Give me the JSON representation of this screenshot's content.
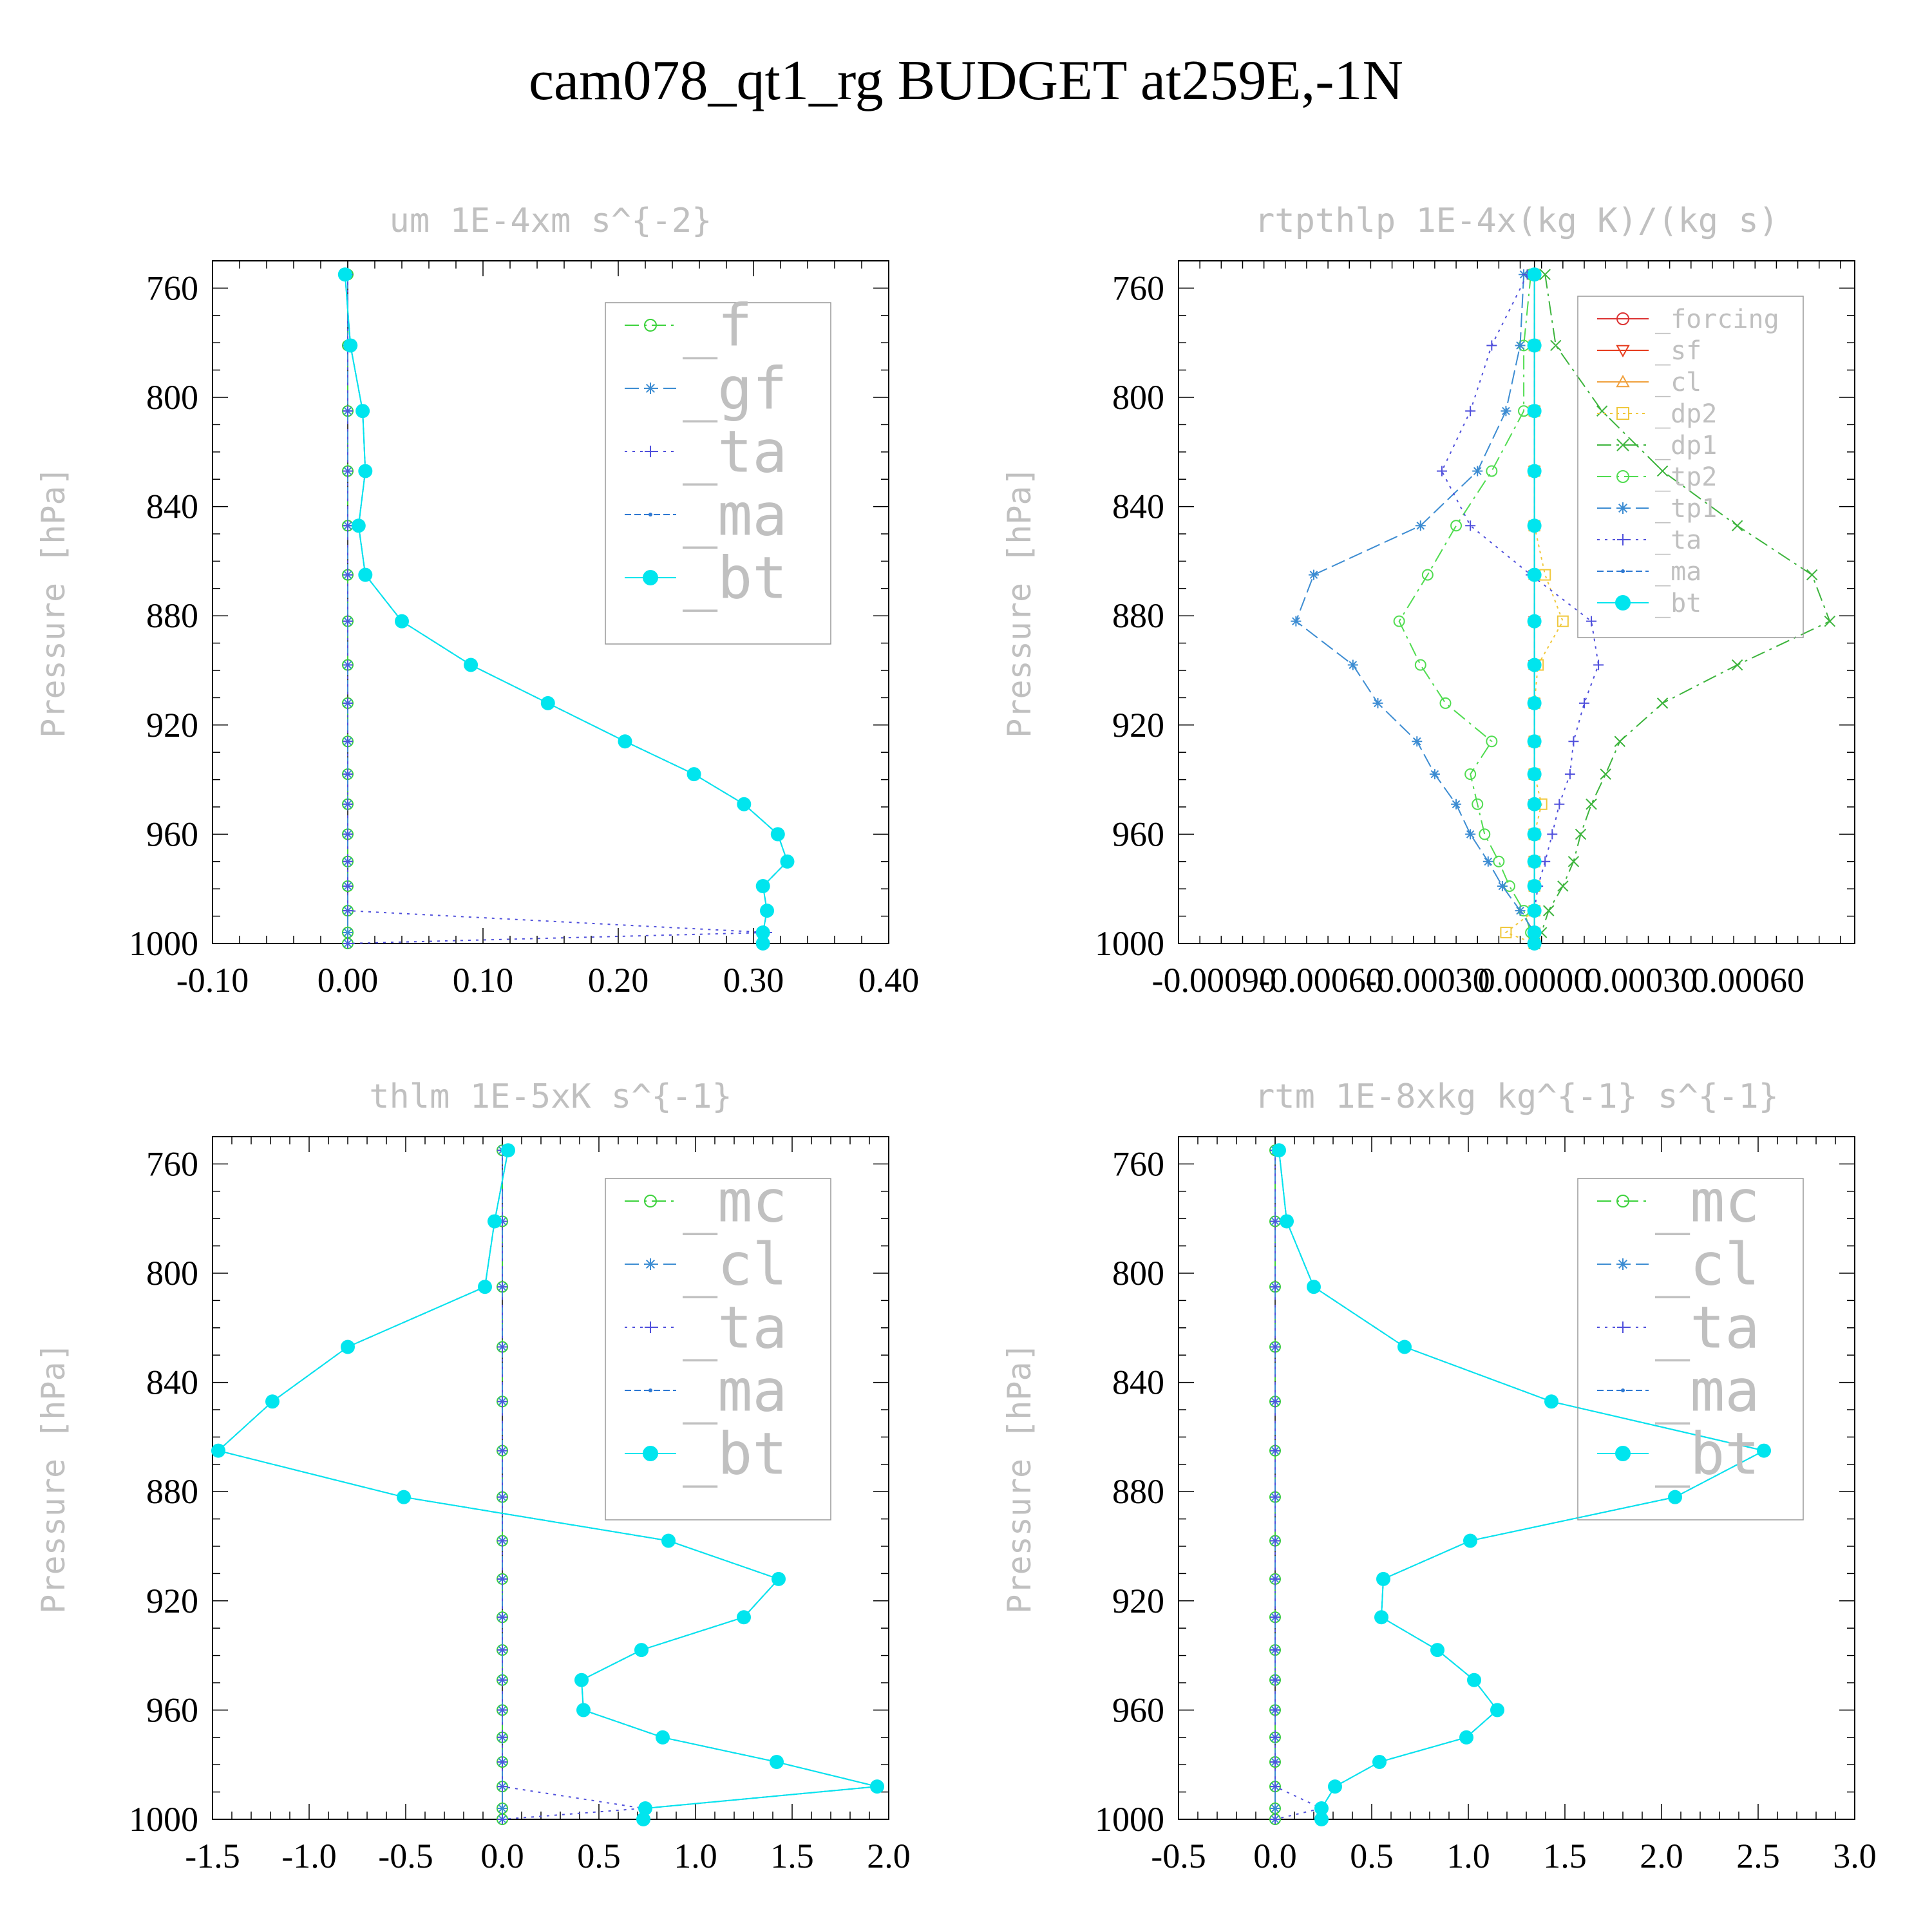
{
  "figure_title": "cam078_qt1_rg  BUDGET at259E,-1N",
  "chart_data": [
    {
      "type": "line",
      "title": "um  1E-4xm s^{-2}",
      "ylabel": "Pressure [hPa]",
      "xlim": [
        -0.1,
        0.4
      ],
      "ylim": [
        1000,
        750
      ],
      "x_tick_labels": [
        "-0.10",
        "0.00",
        "0.10",
        "0.20",
        "0.30",
        "0.40"
      ],
      "y_tick_labels": [
        "760",
        "800",
        "840",
        "880",
        "920",
        "960",
        "1000"
      ],
      "pressure": [
        755,
        781,
        805,
        827,
        847,
        865,
        882,
        898,
        912,
        926,
        938,
        949,
        960,
        970,
        979,
        988,
        996,
        1000
      ],
      "legend_font": 90,
      "series": [
        {
          "name": "_f",
          "color": "#3cd23c",
          "marker": "circle",
          "dash": "22,8,4,8",
          "values": [
            0,
            0,
            0,
            0,
            0,
            0,
            0,
            0,
            0,
            0,
            0,
            0,
            0,
            0,
            0,
            0,
            0,
            0
          ]
        },
        {
          "name": "_gf",
          "color": "#3c8cd2",
          "marker": "star",
          "dash": "22,8",
          "values": [
            0,
            0,
            0,
            0,
            0,
            0,
            0,
            0,
            0,
            0,
            0,
            0,
            0,
            0,
            0,
            0,
            0,
            0
          ]
        },
        {
          "name": "_ta",
          "color": "#5050dc",
          "marker": "plus",
          "dash": "4,8",
          "values": [
            0,
            0,
            0,
            0,
            0,
            0,
            0,
            0,
            0,
            0,
            0,
            0,
            0,
            0,
            0,
            0,
            0.31,
            0
          ]
        },
        {
          "name": "_ma",
          "color": "#2d78d2",
          "marker": "dot",
          "dash": "10,5",
          "values": [
            -0.002,
            0.002,
            0.011,
            0.013,
            0.008,
            0.013,
            0.04,
            0.091,
            0.148,
            0.205,
            0.256,
            0.293,
            0.318,
            0.325,
            0.307,
            0.31,
            0.307,
            0.307
          ]
        },
        {
          "name": "_bt",
          "color": "#00e5ee",
          "marker": "fcircle",
          "dash": "",
          "values": [
            -0.002,
            0.002,
            0.011,
            0.013,
            0.008,
            0.013,
            0.04,
            0.091,
            0.148,
            0.205,
            0.256,
            0.293,
            0.318,
            0.325,
            0.307,
            0.31,
            0.307,
            0.307
          ]
        }
      ]
    },
    {
      "type": "line",
      "title": "rtpthlp  1E-4x(kg K)/(kg s)",
      "ylabel": "Pressure [hPa]",
      "xlim": [
        -0.001,
        0.0009
      ],
      "ylim": [
        1000,
        750
      ],
      "x_tick_labels": [
        "-0.00090",
        "-0.00060",
        "-0.00030",
        "0.00000",
        "0.00030",
        "0.00060"
      ],
      "y_tick_labels": [
        "760",
        "800",
        "840",
        "880",
        "920",
        "960",
        "1000"
      ],
      "pressure": [
        755,
        781,
        805,
        827,
        847,
        865,
        882,
        898,
        912,
        926,
        938,
        949,
        960,
        970,
        979,
        988,
        996,
        1000
      ],
      "legend_font": 40,
      "series": [
        {
          "name": "_forcing",
          "color": "#dc3232",
          "marker": "circle",
          "dash": "",
          "values": [
            0,
            0,
            0,
            0,
            0,
            0,
            0,
            0,
            0,
            0,
            0,
            0,
            0,
            0,
            0,
            0,
            0,
            0
          ]
        },
        {
          "name": "_sf",
          "color": "#e63c1e",
          "marker": "triangle-down",
          "dash": "",
          "values": [
            0,
            0,
            0,
            0,
            0,
            0,
            0,
            0,
            0,
            0,
            0,
            0,
            0,
            0,
            0,
            0,
            0,
            0
          ]
        },
        {
          "name": "_cl",
          "color": "#f0a03c",
          "marker": "triangle-up",
          "dash": "",
          "values": [
            0,
            0,
            0,
            0,
            0,
            0,
            0,
            0,
            0,
            0,
            0,
            0,
            0,
            0,
            0,
            0,
            0,
            0
          ]
        },
        {
          "name": "_dp2",
          "color": "#f0c83c",
          "marker": "square",
          "dash": "4,6",
          "values": [
            0,
            0,
            0,
            0,
            0,
            3e-05,
            8e-05,
            1e-05,
            0,
            0,
            0,
            2e-05,
            0,
            0,
            0,
            0,
            -8e-05,
            0
          ]
        },
        {
          "name": "_dp1",
          "color": "#3cb43c",
          "marker": "cross",
          "dash": "22,8,4,8",
          "values": [
            3e-05,
            6e-05,
            0.00019,
            0.00036,
            0.00057,
            0.00078,
            0.00083,
            0.00057,
            0.00036,
            0.00024,
            0.0002,
            0.00016,
            0.00013,
            0.00011,
            8e-05,
            4e-05,
            2e-05,
            0
          ]
        },
        {
          "name": "_tp2",
          "color": "#50dc50",
          "marker": "circle",
          "dash": "22,8,4,8",
          "values": [
            -1e-05,
            -3e-05,
            -3e-05,
            -0.00012,
            -0.00022,
            -0.0003,
            -0.00038,
            -0.00032,
            -0.00025,
            -0.00012,
            -0.00018,
            -0.00016,
            -0.00014,
            -0.0001,
            -7e-05,
            -3e-05,
            -1e-05,
            0
          ]
        },
        {
          "name": "_tp1",
          "color": "#3c8cd2",
          "marker": "star",
          "dash": "22,8",
          "values": [
            -3e-05,
            -4e-05,
            -8e-05,
            -0.00016,
            -0.00032,
            -0.00062,
            -0.00067,
            -0.00051,
            -0.00044,
            -0.00033,
            -0.00028,
            -0.00022,
            -0.00018,
            -0.00013,
            -9e-05,
            -4e-05,
            0,
            0
          ]
        },
        {
          "name": "_ta",
          "color": "#5050dc",
          "marker": "plus",
          "dash": "4,8",
          "values": [
            -2e-05,
            -0.00012,
            -0.00018,
            -0.00026,
            -0.00018,
            -1e-05,
            0.00016,
            0.00018,
            0.00014,
            0.00011,
            0.0001,
            7e-05,
            5e-05,
            3e-05,
            1e-05,
            0,
            0,
            0
          ]
        },
        {
          "name": "_ma",
          "color": "#2d78d2",
          "marker": "dot",
          "dash": "10,5",
          "values": [
            0,
            0,
            0,
            0,
            0,
            0,
            0,
            0,
            0,
            0,
            0,
            0,
            0,
            0,
            0,
            0,
            0,
            0
          ]
        },
        {
          "name": "_bt",
          "color": "#00e5ee",
          "marker": "fcircle",
          "dash": "",
          "values": [
            0,
            0,
            0,
            0,
            0,
            0,
            0,
            0,
            0,
            0,
            0,
            0,
            0,
            0,
            0,
            0,
            0,
            0
          ]
        }
      ]
    },
    {
      "type": "line",
      "title": "thlm  1E-5xK s^{-1}",
      "ylabel": "Pressure [hPa]",
      "xlim": [
        -1.5,
        2.0
      ],
      "ylim": [
        1000,
        750
      ],
      "x_tick_labels": [
        "-1.5",
        "-1.0",
        "-0.5",
        "0.0",
        "0.5",
        "1.0",
        "1.5",
        "2.0"
      ],
      "y_tick_labels": [
        "760",
        "800",
        "840",
        "880",
        "920",
        "960",
        "1000"
      ],
      "pressure": [
        755,
        781,
        805,
        827,
        847,
        865,
        882,
        898,
        912,
        926,
        938,
        949,
        960,
        970,
        979,
        988,
        996,
        1000
      ],
      "legend_font": 90,
      "series": [
        {
          "name": "_mc",
          "color": "#3cd23c",
          "marker": "circle",
          "dash": "22,8,4,8",
          "values": [
            0,
            0,
            0,
            0,
            0,
            0,
            0,
            0,
            0,
            0,
            0,
            0,
            0,
            0,
            0,
            0,
            0,
            0
          ]
        },
        {
          "name": "_cl",
          "color": "#3c8cd2",
          "marker": "star",
          "dash": "22,8",
          "values": [
            0,
            0,
            0,
            0,
            0,
            0,
            0,
            0,
            0,
            0,
            0,
            0,
            0,
            0,
            0,
            0,
            0,
            0
          ]
        },
        {
          "name": "_ta",
          "color": "#5050dc",
          "marker": "plus",
          "dash": "4,8",
          "values": [
            0,
            0,
            0,
            0,
            0,
            0,
            0,
            0,
            0,
            0,
            0,
            0,
            0,
            0,
            0,
            0,
            0.73,
            0
          ]
        },
        {
          "name": "_ma",
          "color": "#2d78d2",
          "marker": "dot",
          "dash": "10,5",
          "values": [
            0.03,
            -0.04,
            -0.09,
            -0.8,
            -1.19,
            -1.47,
            -0.51,
            0.86,
            1.43,
            1.25,
            0.72,
            0.41,
            0.42,
            0.83,
            1.42,
            1.94,
            0.74,
            0.73
          ]
        },
        {
          "name": "_bt",
          "color": "#00e5ee",
          "marker": "fcircle",
          "dash": "",
          "values": [
            0.03,
            -0.04,
            -0.09,
            -0.8,
            -1.19,
            -1.47,
            -0.51,
            0.86,
            1.43,
            1.25,
            0.72,
            0.41,
            0.42,
            0.83,
            1.42,
            1.94,
            0.74,
            0.73
          ]
        }
      ]
    },
    {
      "type": "line",
      "title": "rtm  1E-8xkg kg^{-1} s^{-1}",
      "ylabel": "Pressure [hPa]",
      "xlim": [
        -0.5,
        3.0
      ],
      "ylim": [
        1000,
        750
      ],
      "x_tick_labels": [
        "-0.5",
        "0.0",
        "0.5",
        "1.0",
        "1.5",
        "2.0",
        "2.5",
        "3.0"
      ],
      "y_tick_labels": [
        "760",
        "800",
        "840",
        "880",
        "920",
        "960",
        "1000"
      ],
      "pressure": [
        755,
        781,
        805,
        827,
        847,
        865,
        882,
        898,
        912,
        926,
        938,
        949,
        960,
        970,
        979,
        988,
        996,
        1000
      ],
      "legend_font": 90,
      "series": [
        {
          "name": "_mc",
          "color": "#3cd23c",
          "marker": "circle",
          "dash": "22,8,4,8",
          "values": [
            0,
            0,
            0,
            0,
            0,
            0,
            0,
            0,
            0,
            0,
            0,
            0,
            0,
            0,
            0,
            0,
            0,
            0
          ]
        },
        {
          "name": "_cl",
          "color": "#3c8cd2",
          "marker": "star",
          "dash": "22,8",
          "values": [
            0,
            0,
            0,
            0,
            0,
            0,
            0,
            0,
            0,
            0,
            0,
            0,
            0,
            0,
            0,
            0,
            0,
            0
          ]
        },
        {
          "name": "_ta",
          "color": "#5050dc",
          "marker": "plus",
          "dash": "4,8",
          "values": [
            0,
            0,
            0,
            0,
            0,
            0,
            0,
            0,
            0,
            0,
            0,
            0,
            0,
            0,
            0,
            0,
            0.24,
            0
          ]
        },
        {
          "name": "_ma",
          "color": "#2d78d2",
          "marker": "dot",
          "dash": "10,5",
          "values": [
            0.02,
            0.06,
            0.2,
            0.67,
            1.43,
            2.53,
            2.07,
            1.01,
            0.56,
            0.55,
            0.84,
            1.03,
            1.15,
            0.99,
            0.54,
            0.31,
            0.24,
            0.24
          ]
        },
        {
          "name": "_bt",
          "color": "#00e5ee",
          "marker": "fcircle",
          "dash": "",
          "values": [
            0.02,
            0.06,
            0.2,
            0.67,
            1.43,
            2.53,
            2.07,
            1.01,
            0.56,
            0.55,
            0.84,
            1.03,
            1.15,
            0.99,
            0.54,
            0.31,
            0.24,
            0.24
          ]
        }
      ]
    }
  ]
}
